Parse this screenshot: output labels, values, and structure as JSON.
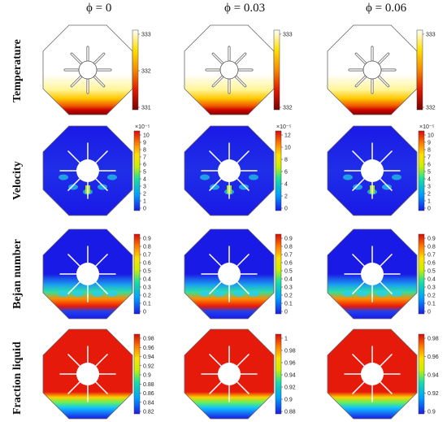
{
  "columns": [
    {
      "phi_label": "ϕ = 0"
    },
    {
      "phi_label": "ϕ = 0.03"
    },
    {
      "phi_label": "ϕ = 0.06"
    }
  ],
  "rows": [
    {
      "label": "Temperature",
      "colormap": "heat",
      "panels": [
        {
          "ticks": [
            "333",
            "332",
            "331"
          ],
          "exponent": ""
        },
        {
          "ticks": [
            "333",
            "332"
          ],
          "exponent": ""
        },
        {
          "ticks": [
            "333",
            "332"
          ],
          "exponent": ""
        }
      ]
    },
    {
      "label": "Velocity",
      "colormap": "rainbow",
      "panels": [
        {
          "ticks": [
            "10",
            "9",
            "8",
            "7",
            "6",
            "5",
            "4",
            "3",
            "2",
            "1",
            "0"
          ],
          "exponent": "×10⁻⁵"
        },
        {
          "ticks": [
            "12",
            "10",
            "8",
            "6",
            "4",
            "2",
            "0"
          ],
          "exponent": "×10⁻⁵"
        },
        {
          "ticks": [
            "10",
            "9",
            "8",
            "7",
            "6",
            "5",
            "4",
            "3",
            "2",
            "1",
            "0"
          ],
          "exponent": "×10⁻⁵"
        }
      ]
    },
    {
      "label": "Bejan number",
      "colormap": "rainbow",
      "panels": [
        {
          "ticks": [
            "0.9",
            "0.8",
            "0.7",
            "0.6",
            "0.5",
            "0.4",
            "0.3",
            "0.2",
            "0.1",
            "0"
          ],
          "exponent": ""
        },
        {
          "ticks": [
            "0.9",
            "0.8",
            "0.7",
            "0.6",
            "0.5",
            "0.4",
            "0.3",
            "0.2",
            "0.1",
            "0"
          ],
          "exponent": ""
        },
        {
          "ticks": [
            "0.9",
            "0.8",
            "0.7",
            "0.6",
            "0.5",
            "0.4",
            "0.3",
            "0.2",
            "0.1",
            "0"
          ],
          "exponent": ""
        }
      ]
    },
    {
      "label": "Fraction liquid",
      "colormap": "rainbow",
      "panels": [
        {
          "ticks": [
            "0.98",
            "0.96",
            "0.94",
            "0.92",
            "0.9",
            "0.88",
            "0.86",
            "0.84",
            "0.82"
          ],
          "exponent": ""
        },
        {
          "ticks": [
            "1",
            "0.98",
            "0.96",
            "0.94",
            "0.92",
            "0.9",
            "0.88"
          ],
          "exponent": ""
        },
        {
          "ticks": [
            "0.98",
            "0.96",
            "0.94",
            "0.92",
            "0.9"
          ],
          "exponent": ""
        }
      ]
    }
  ],
  "colors": {
    "cold_blue": "#1a1ae6",
    "hot_red": "#e61a0a",
    "fin_line": "#ffffff",
    "frame": "#666666"
  }
}
